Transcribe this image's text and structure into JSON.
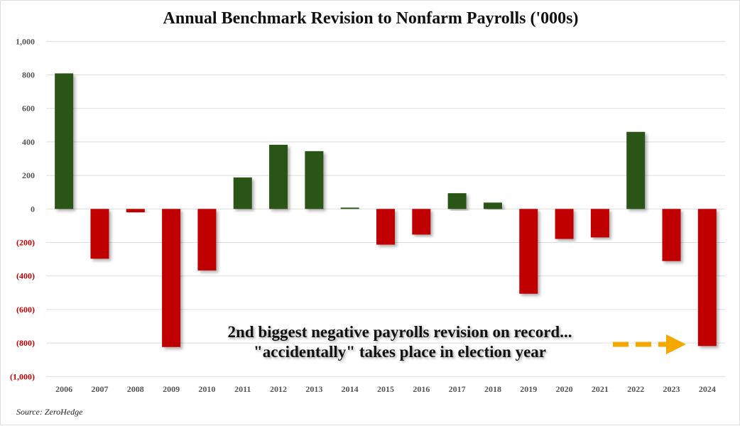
{
  "chart_data": {
    "type": "bar",
    "title": "Annual Benchmark Revision to Nonfarm Payrolls ('000s)",
    "categories": [
      "2006",
      "2007",
      "2008",
      "2009",
      "2010",
      "2011",
      "2012",
      "2013",
      "2014",
      "2015",
      "2016",
      "2017",
      "2018",
      "2019",
      "2020",
      "2021",
      "2022",
      "2023",
      "2024"
    ],
    "values": [
      809,
      -297,
      -20,
      -824,
      -367,
      188,
      383,
      345,
      8,
      -213,
      -153,
      94,
      38,
      -506,
      -179,
      -170,
      460,
      -311,
      -818
    ],
    "ylim": [
      -1000,
      1000
    ],
    "yticks": [
      1000,
      800,
      600,
      400,
      200,
      0,
      -200,
      -400,
      -600,
      -800,
      -1000
    ],
    "ytick_labels": [
      "1,000",
      "800",
      "600",
      "400",
      "200",
      "0",
      "(200)",
      "(400)",
      "(600)",
      "(800)",
      "(1,000)"
    ],
    "grid": true,
    "colors": {
      "positive": "#2a5519",
      "negative": "#c00000",
      "negative_label": "#c00000",
      "arrow": "#f5a800"
    },
    "annotation": [
      "2nd  biggest negative payrolls revision on record...",
      "\"accidentally\" takes place in election year"
    ],
    "source": "Source: ZeroHedge"
  }
}
